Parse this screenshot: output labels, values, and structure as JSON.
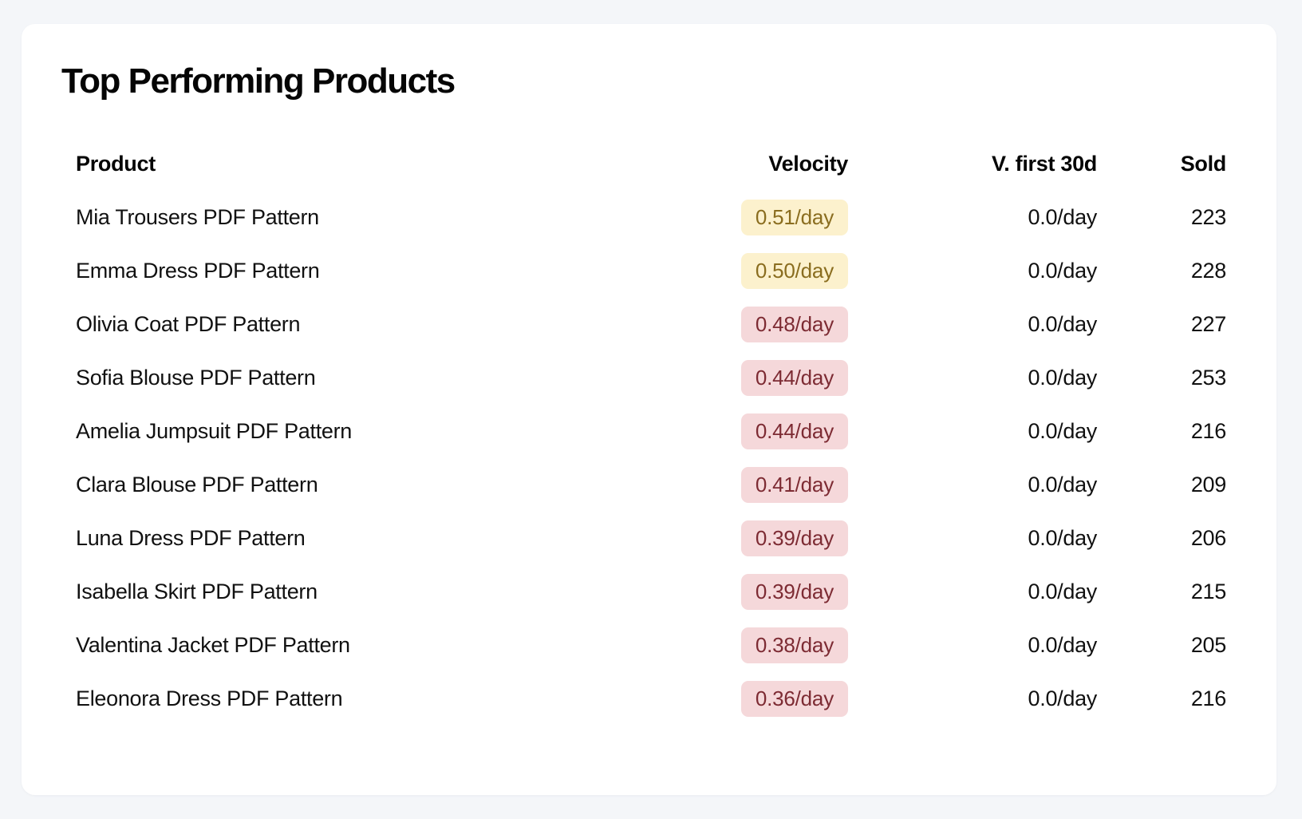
{
  "title": "Top Performing Products",
  "table": {
    "headers": {
      "product": "Product",
      "velocity": "Velocity",
      "v_first_30d": "V. first 30d",
      "sold": "Sold"
    },
    "rows": [
      {
        "product": "Mia Trousers PDF Pattern",
        "velocity": "0.51/day",
        "velocity_tone": "yellow",
        "v_first_30d": "0.0/day",
        "sold": "223"
      },
      {
        "product": "Emma Dress PDF Pattern",
        "velocity": "0.50/day",
        "velocity_tone": "yellow",
        "v_first_30d": "0.0/day",
        "sold": "228"
      },
      {
        "product": "Olivia Coat PDF Pattern",
        "velocity": "0.48/day",
        "velocity_tone": "red",
        "v_first_30d": "0.0/day",
        "sold": "227"
      },
      {
        "product": "Sofia Blouse PDF Pattern",
        "velocity": "0.44/day",
        "velocity_tone": "red",
        "v_first_30d": "0.0/day",
        "sold": "253"
      },
      {
        "product": "Amelia Jumpsuit PDF Pattern",
        "velocity": "0.44/day",
        "velocity_tone": "red",
        "v_first_30d": "0.0/day",
        "sold": "216"
      },
      {
        "product": "Clara Blouse PDF Pattern",
        "velocity": "0.41/day",
        "velocity_tone": "red",
        "v_first_30d": "0.0/day",
        "sold": "209"
      },
      {
        "product": "Luna Dress PDF Pattern",
        "velocity": "0.39/day",
        "velocity_tone": "red",
        "v_first_30d": "0.0/day",
        "sold": "206"
      },
      {
        "product": "Isabella Skirt PDF Pattern",
        "velocity": "0.39/day",
        "velocity_tone": "red",
        "v_first_30d": "0.0/day",
        "sold": "215"
      },
      {
        "product": "Valentina Jacket PDF Pattern",
        "velocity": "0.38/day",
        "velocity_tone": "red",
        "v_first_30d": "0.0/day",
        "sold": "205"
      },
      {
        "product": "Eleonora Dress PDF Pattern",
        "velocity": "0.36/day",
        "velocity_tone": "red",
        "v_first_30d": "0.0/day",
        "sold": "216"
      }
    ]
  },
  "colors": {
    "page_bg": "#f4f6f9",
    "card_bg": "#ffffff",
    "badge_yellow_bg": "#fcf1cd",
    "badge_yellow_text": "#8a6d1f",
    "badge_red_bg": "#f5d8da",
    "badge_red_text": "#7d2b33"
  }
}
